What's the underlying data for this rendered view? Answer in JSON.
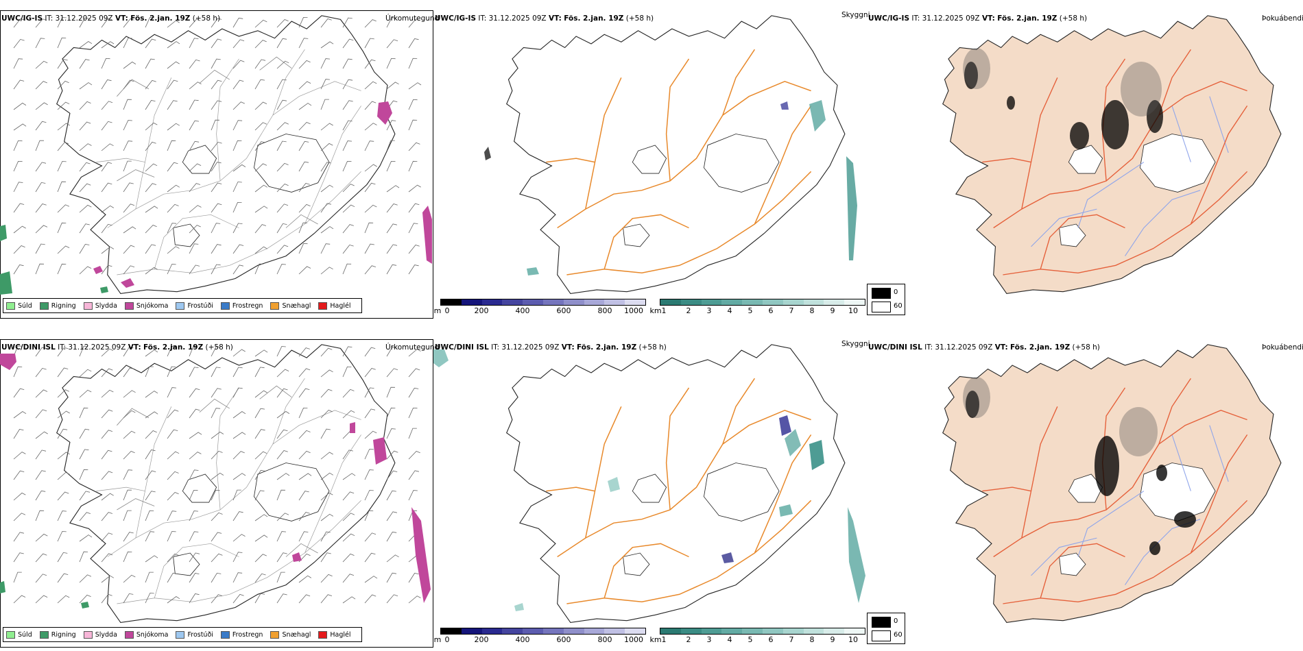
{
  "rows": [
    {
      "model": "UWC/IG-IS",
      "it_label": "IT:",
      "it_value": "31.12.2025 09Z",
      "vt_label": "VT:",
      "vt_value": "Fös. 2.jan. 19Z",
      "lead": "(+58 h)"
    },
    {
      "model": "UWC/DINI ISL",
      "it_label": "IT:",
      "it_value": "31.12.2025 09Z",
      "vt_label": "VT:",
      "vt_value": "Fös. 2.jan. 19Z",
      "lead": "(+58 h)"
    }
  ],
  "panel_titles": {
    "precip_type": "Úrkomutegund",
    "visibility": "Skyggni",
    "fog": "Þokuábendi"
  },
  "precip_legend": [
    {
      "label": "Súld",
      "color": "#90ee90"
    },
    {
      "label": "Rigning",
      "color": "#3e9a67"
    },
    {
      "label": "Slydda",
      "color": "#f7b6d8"
    },
    {
      "label": "Snjókoma",
      "color": "#c0479b"
    },
    {
      "label": "Frostúði",
      "color": "#9ec8f0"
    },
    {
      "label": "Frostregn",
      "color": "#3a7bc8"
    },
    {
      "label": "Snæhagl",
      "color": "#f0a030"
    },
    {
      "label": "Haglél",
      "color": "#e41a1c"
    }
  ],
  "elevation_scale": {
    "unit": "m",
    "ticks": [
      "0",
      "200",
      "400",
      "600",
      "800",
      "1000"
    ],
    "colors": [
      "#000000",
      "#15157a",
      "#2a2a90",
      "#45459f",
      "#5c5caf",
      "#7575bd",
      "#8f8fca",
      "#a8a8d8",
      "#c0c0e4",
      "#dcdcf0"
    ]
  },
  "visibility_scale": {
    "unit": "km",
    "ticks": [
      "1",
      "2",
      "3",
      "4",
      "5",
      "6",
      "7",
      "8",
      "9",
      "10"
    ],
    "colors": [
      "#2b7a72",
      "#3b8c84",
      "#4e9c94",
      "#63aba4",
      "#79b9b2",
      "#90c7c1",
      "#a8d5cf",
      "#c0e1dc",
      "#d8ece9",
      "#eef7f5"
    ]
  },
  "fog_scale": {
    "top_label": "0",
    "bottom_label": "60",
    "top_color": "#000000",
    "bottom_color": "#ffffff"
  },
  "colors": {
    "land_fog": "#f4dcc8",
    "roads": "#e8892b",
    "rivers": "#8fa5ea",
    "coast": "#222222",
    "snow": "#c0479b",
    "rain": "#3e9a67"
  }
}
